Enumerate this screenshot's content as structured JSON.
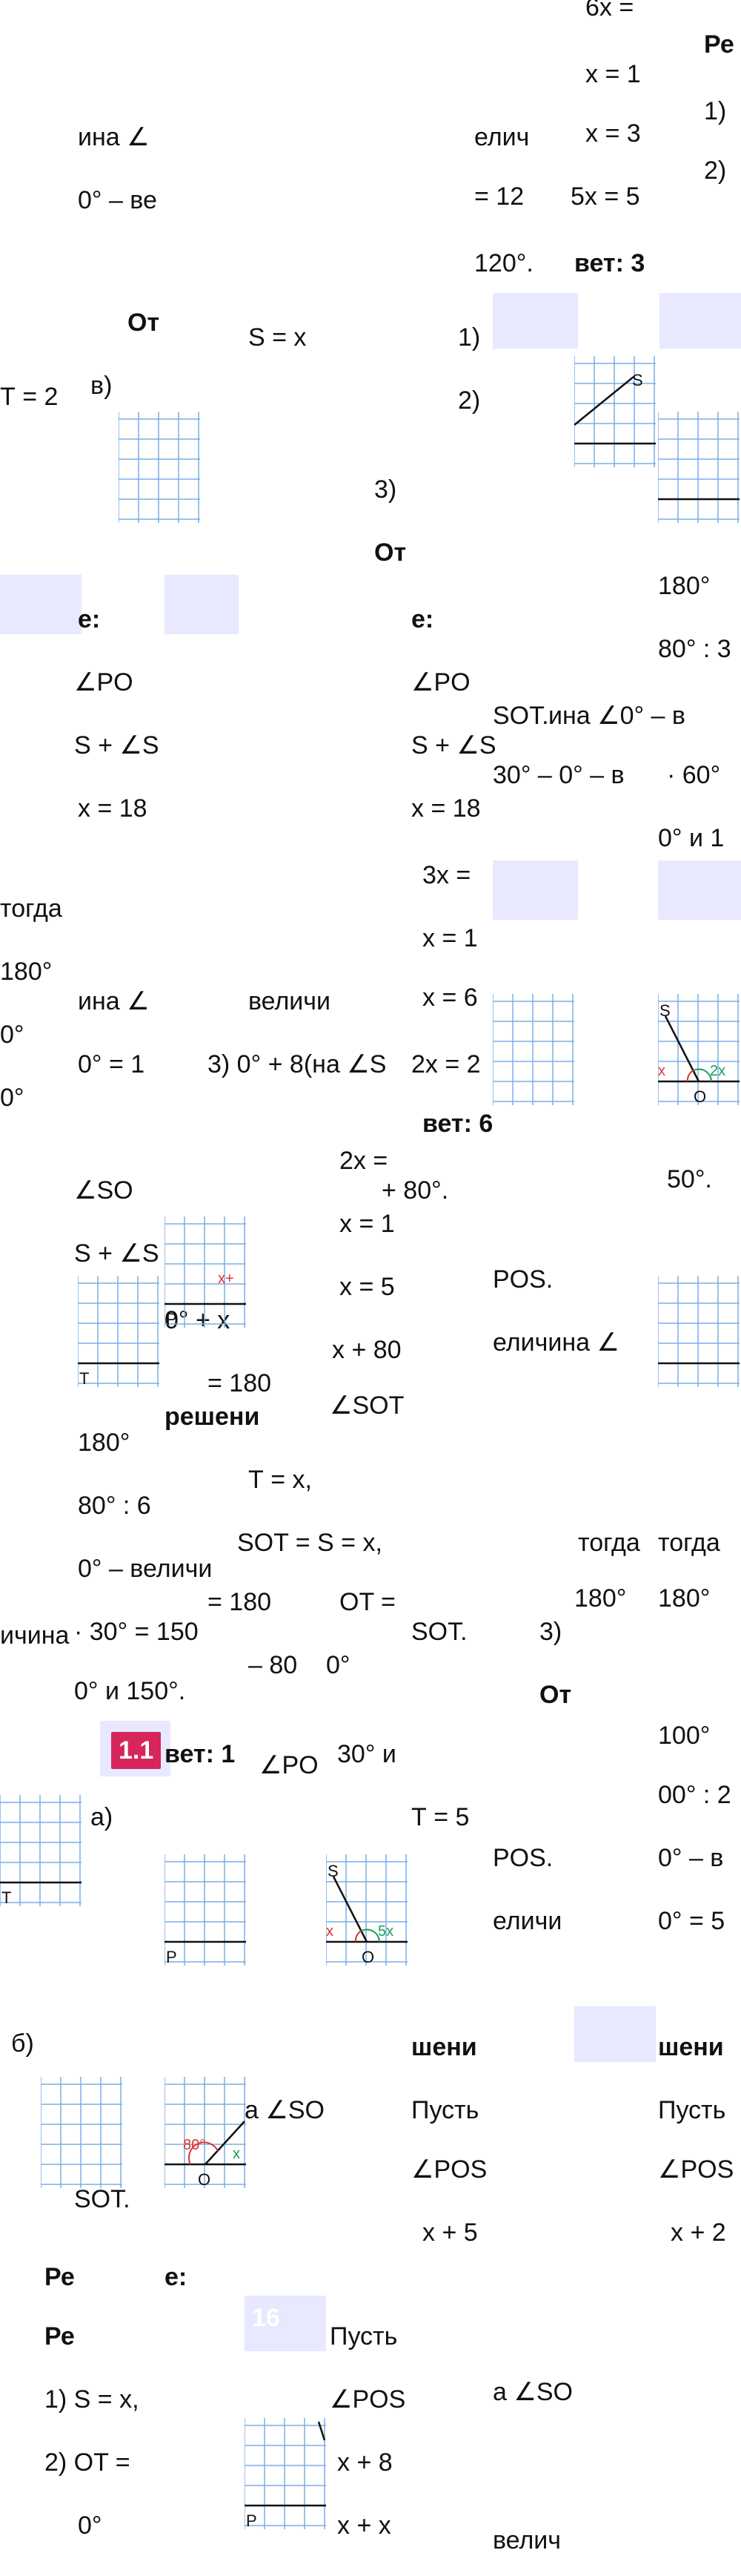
{
  "top": {
    "a": "6x =",
    "b": "x = 1",
    "c": "x = 3",
    "d": "5x = 5",
    "e": "= 12",
    "f": "120°.",
    "g": "вет: 3",
    "h": "Ре",
    "i": "1)",
    "j": "2)",
    "k": "ина ∠",
    "l": "0° – ве",
    "m": "елич",
    "n": "От",
    "o": "S = x",
    "p": "1)",
    "q": "2)",
    "r": "Т = 2",
    "s": "в)",
    "u": "3)",
    "v": "От"
  },
  "sol1": {
    "a": "е:",
    "b": "∠PO",
    "c": "S + ∠S",
    "d": "x = 18",
    "e": "е:",
    "f": "∠PO",
    "g": "S + ∠S",
    "h": "x = 18",
    "i": "3x =",
    "j": "x = 1",
    "k": "x = 6",
    "l": "SOT.",
    "m": "ина ∠0° – в",
    "n": "30° – 0° – в",
    "o": "· 60°",
    "p": "0° и 1",
    "q": "180°",
    "r": "80° : 3"
  },
  "mid": {
    "a": "тогда",
    "b": "180°",
    "c": "0°",
    "d": "0°",
    "e": "ина ∠",
    "f": "величи",
    "g": "0° = 1",
    "h": "3) 0° + 8(на ∠S",
    "i": "2x = 2",
    "j": "вет: 6",
    "k": "50°.",
    "l": "2x =",
    "m": "∠SO",
    "n": "+ 80°.",
    "o": "x = 1",
    "p": "S + ∠S",
    "q": "x = 5",
    "r": "0° + x",
    "s": "x + 80",
    "t": "POS.",
    "u": "= 180",
    "v": "∠SOT",
    "w": "еличина ∠",
    "x": "решени",
    "y": "180°",
    "z": "80° : 6"
  },
  "low": {
    "a": "Т = x,",
    "b": "SOT = S = x,",
    "c": "тогда",
    "d": "тогда",
    "e": "0° – величи",
    "f": "= 180",
    "g": "OT =",
    "h": "ичина",
    "i": "· 30° = 150",
    "j": "SOT.",
    "k": "3)",
    "l": "180°",
    "m": "180°",
    "n": "0° и 150°.",
    "o": "– 80",
    "p": "0°",
    "q": "От",
    "badge": "1.1",
    "r": "вет: 1",
    "s": "∠PO",
    "t": "30° и",
    "u": "100°",
    "v": "а)",
    "w": "Т = 5",
    "x": "POS.",
    "y": "00° : 2",
    "z": "0° – в"
  },
  "bottom": {
    "a": "еличи",
    "b": "0° = 5",
    "c": "б)",
    "d": "шени",
    "e": "шени",
    "f": "а ∠SO",
    "g": "Пусть",
    "h": "Пусть",
    "i": "SOT.",
    "j": "∠POS",
    "k": "∠POS",
    "l": "Ре",
    "m": "е:",
    "n": "x + 5",
    "o": "x + 2",
    "badge": "16",
    "p": "Ре",
    "q": "Пусть",
    "r": "1) S = x,",
    "s": "∠POS",
    "t": "а ∠SO",
    "u": "2) OT =",
    "v": "x + 8",
    "w": "0°",
    "x": "x + x",
    "y": "велич"
  },
  "diagram_labels": {
    "S": "S",
    "O": "O",
    "P": "P",
    "T": "T",
    "x": "x",
    "x80": "x+",
    "2x": "2x",
    "5x": "5x",
    "80": "80°"
  }
}
